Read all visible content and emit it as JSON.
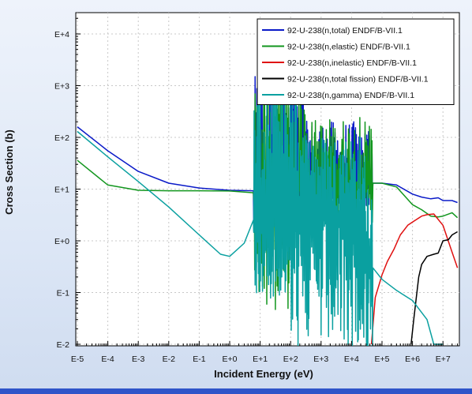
{
  "chart_data": {
    "type": "line",
    "title": "",
    "xlabel": "Incident Energy (eV)",
    "ylabel": "Cross Section (b)",
    "x_scale": "log",
    "y_scale": "log",
    "xlim": [
      1e-05,
      30000000
    ],
    "ylim": [
      0.01,
      20000
    ],
    "grid": true,
    "legend_position": "top-right",
    "x_ticks": [
      "E-5",
      "E-4",
      "E-3",
      "E-2",
      "E-1",
      "E+0",
      "E+1",
      "E+2",
      "E+3",
      "E+4",
      "E+5",
      "E+6",
      "E+7"
    ],
    "y_ticks": [
      "E-2",
      "E-1",
      "E+0",
      "E+1",
      "E+2",
      "E+3",
      "E+4"
    ],
    "series": [
      {
        "name": "92-U-238(n,total) ENDF/B-VII.1",
        "color": "#0a1ac8",
        "kind": "total",
        "x": [
          1e-05,
          0.0001,
          0.001,
          0.01,
          0.1,
          1,
          6,
          15,
          50,
          200,
          1000,
          5000,
          20000,
          50000,
          100000,
          300000,
          1000000,
          2000000,
          4000000,
          7000000,
          10000000,
          20000000,
          30000000
        ],
        "y": [
          160,
          55,
          22,
          13,
          10.5,
          9.5,
          9.3,
          12,
          13,
          13,
          13,
          13,
          13,
          13,
          13,
          12,
          8,
          7,
          6.5,
          6.8,
          6,
          6,
          5.5
        ]
      },
      {
        "name": "92-U-238(n,elastic) ENDF/B-VII.1",
        "color": "#12961e",
        "kind": "elastic",
        "x": [
          1e-05,
          0.0001,
          0.001,
          0.01,
          0.1,
          1,
          6,
          15,
          50,
          200,
          1000,
          5000,
          20000,
          50000,
          100000,
          300000,
          1000000,
          2000000,
          4000000,
          7000000,
          10000000,
          20000000,
          30000000
        ],
        "y": [
          36,
          12,
          9.5,
          9.3,
          9.3,
          9.2,
          8.5,
          10,
          11,
          11.5,
          12,
          12.5,
          13,
          13,
          13,
          11,
          5,
          4,
          3,
          2.9,
          3,
          3.5,
          2.8
        ]
      },
      {
        "name": "92-U-238(n,inelastic) ENDF/B-VII.1",
        "color": "#e01010",
        "kind": "inelastic",
        "x": [
          45000,
          60000,
          100000,
          150000,
          250000,
          400000,
          700000,
          1000000,
          2000000,
          3000000,
          5000000,
          10000000,
          20000000,
          30000000
        ],
        "y": [
          0.01,
          0.08,
          0.22,
          0.4,
          0.7,
          1.3,
          2.0,
          2.3,
          3.0,
          3.2,
          3.3,
          2.0,
          0.6,
          0.3
        ]
      },
      {
        "name": "92-U-238(n,total fission) ENDF/B-VII.1",
        "color": "#000000",
        "kind": "fission",
        "x": [
          900000,
          1100000,
          1300000,
          1600000,
          2000000,
          3000000,
          5000000,
          7000000,
          10000000,
          15000000,
          20000000,
          30000000
        ],
        "y": [
          0.01,
          0.03,
          0.07,
          0.2,
          0.35,
          0.5,
          0.55,
          0.58,
          1.0,
          1.05,
          1.3,
          1.5
        ]
      },
      {
        "name": "92-U-238(n,gamma) ENDF/B-VII.1",
        "color": "#0aa0a0",
        "kind": "gamma",
        "x": [
          1e-05,
          0.0001,
          0.001,
          0.01,
          0.1,
          0.5,
          1,
          3,
          6,
          15,
          50,
          500,
          20000,
          50000,
          100000,
          300000,
          1000000,
          3000000,
          5000000,
          10000000
        ],
        "y": [
          130,
          42,
          14,
          4.5,
          1.3,
          0.55,
          0.5,
          0.9,
          2.5,
          3,
          3,
          3,
          3,
          0.3,
          0.18,
          0.11,
          0.07,
          0.03,
          0.01,
          0.01
        ]
      }
    ]
  }
}
